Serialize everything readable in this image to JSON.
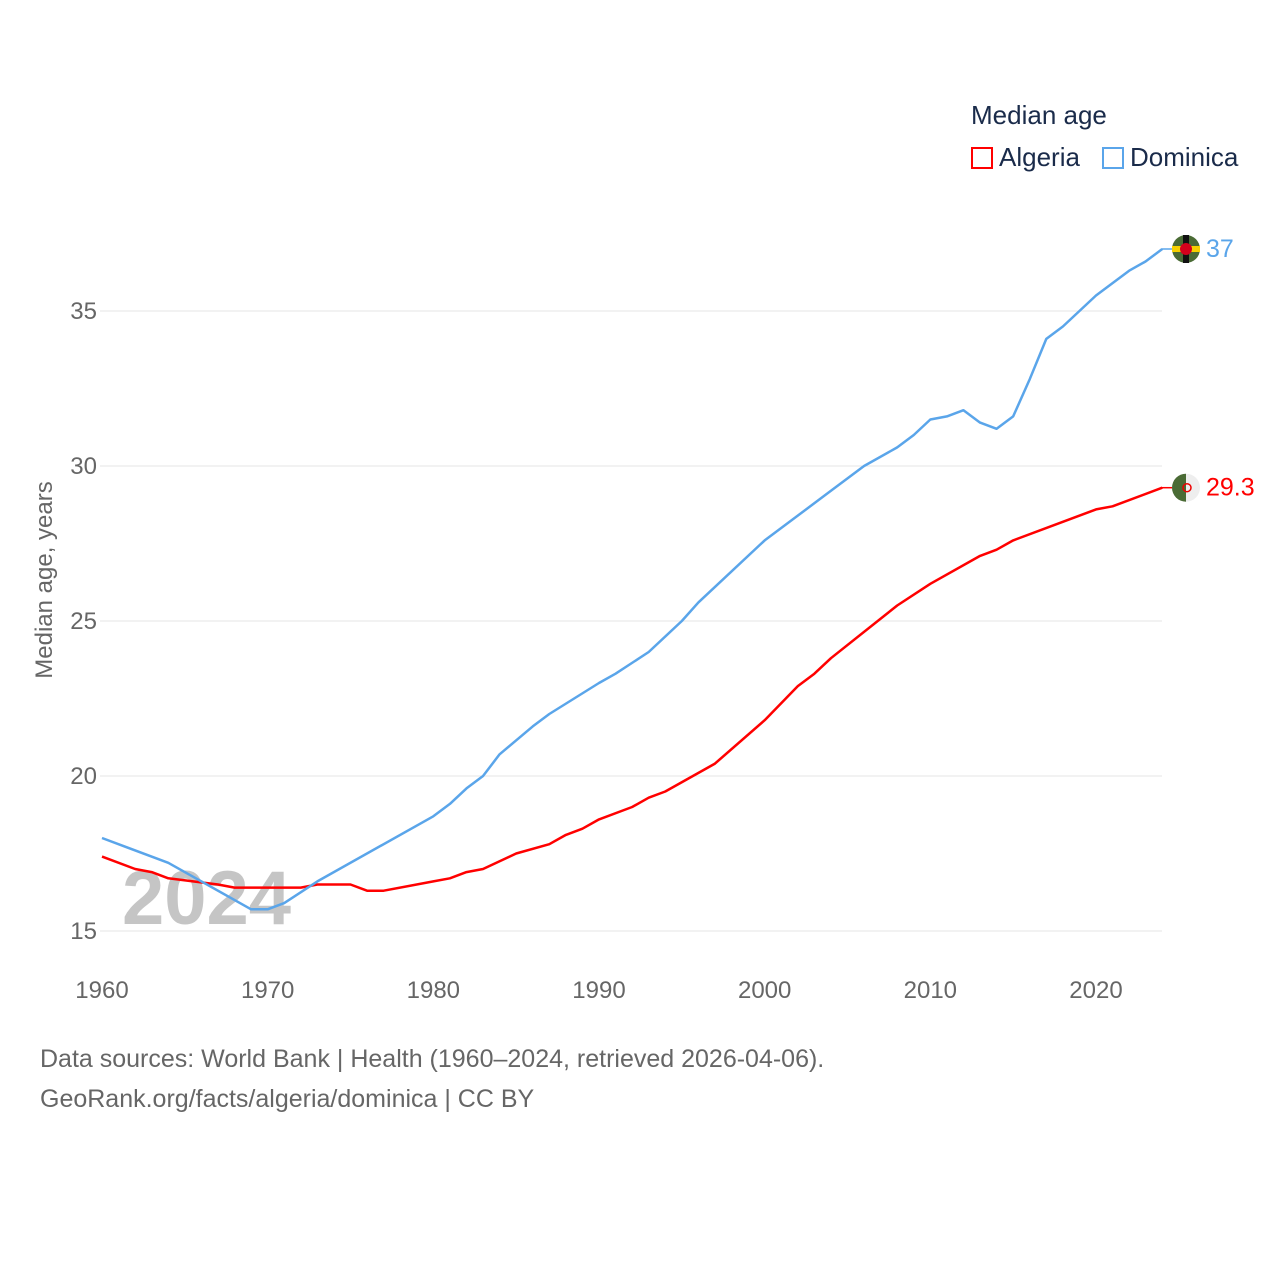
{
  "chart_data": {
    "type": "line",
    "title": "Median age",
    "xlabel": "",
    "ylabel": "Median age, years",
    "xlim": [
      1960,
      2024
    ],
    "ylim": [
      15,
      37.5
    ],
    "xticks": [
      1960,
      1970,
      1980,
      1990,
      2000,
      2010,
      2020
    ],
    "yticks": [
      15,
      20,
      25,
      30,
      35
    ],
    "grid": true,
    "legend_position": "top-right",
    "watermark_year": "2024",
    "series": [
      {
        "name": "Algeria",
        "color": "#ff0000",
        "end_label": "29.3",
        "x": [
          1960,
          1962,
          1963,
          1964,
          1967,
          1968,
          1972,
          1973,
          1975,
          1976,
          1977,
          1980,
          1981,
          1982,
          1983,
          1985,
          1987,
          1988,
          1989,
          1990,
          1992,
          1993,
          1994,
          1997,
          2000,
          2002,
          2003,
          2004,
          2008,
          2010,
          2013,
          2014,
          2015,
          2018,
          2020,
          2021,
          2024
        ],
        "y": [
          17.4,
          17.0,
          16.9,
          16.7,
          16.5,
          16.4,
          16.4,
          16.5,
          16.5,
          16.3,
          16.3,
          16.6,
          16.7,
          16.9,
          17.0,
          17.5,
          17.8,
          18.1,
          18.3,
          18.6,
          19.0,
          19.3,
          19.5,
          20.4,
          21.8,
          22.9,
          23.3,
          23.8,
          25.5,
          26.2,
          27.1,
          27.3,
          27.6,
          28.2,
          28.6,
          28.7,
          29.3
        ]
      },
      {
        "name": "Dominica",
        "color": "#5aa5ea",
        "end_label": "37",
        "x": [
          1960,
          1964,
          1969,
          1970,
          1971,
          1973,
          1980,
          1981,
          1982,
          1983,
          1984,
          1986,
          1987,
          1990,
          1991,
          1993,
          1995,
          1996,
          2000,
          2004,
          2006,
          2008,
          2009,
          2010,
          2011,
          2012,
          2013,
          2014,
          2015,
          2016,
          2017,
          2018,
          2020,
          2022,
          2023,
          2024
        ],
        "y": [
          18.0,
          17.2,
          15.7,
          15.7,
          15.9,
          16.6,
          18.7,
          19.1,
          19.6,
          20.0,
          20.7,
          21.6,
          22.0,
          23.0,
          23.3,
          24.0,
          25.0,
          25.6,
          27.6,
          29.2,
          30.0,
          30.6,
          31.0,
          31.5,
          31.6,
          31.8,
          31.4,
          31.2,
          31.6,
          32.8,
          34.1,
          34.5,
          35.5,
          36.3,
          36.6,
          37.0
        ]
      }
    ]
  },
  "legend": {
    "title": "Median age",
    "items": [
      "Algeria",
      "Dominica"
    ]
  },
  "footer": {
    "line1": "Data sources: World Bank | Health (1960–2024, retrieved 2026-04-06).",
    "line2": "GeoRank.org/facts/algeria/dominica | CC BY"
  }
}
